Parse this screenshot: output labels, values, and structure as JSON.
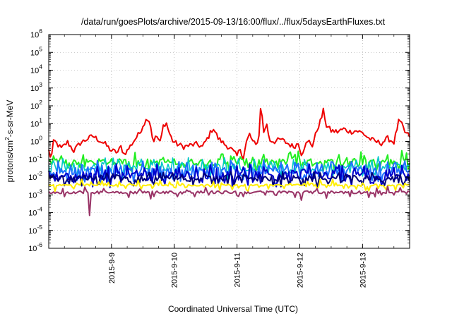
{
  "chart_data": {
    "type": "line",
    "title": "/data/run/goesPlots/archive/2015-09-13/16:00/flux/../flux/5daysEarthFluxes.txt",
    "xlabel": "Coordinated Universal Time (UTC)",
    "ylabel_parts": {
      "a": "protons/cm",
      "sup": "2",
      "b": "-s-sr-MeV"
    },
    "yscale": "log",
    "ylim_exp": [
      -6,
      6
    ],
    "ytick_exps": [
      -6,
      -5,
      -4,
      -3,
      -2,
      -1,
      0,
      1,
      2,
      3,
      4,
      5,
      6
    ],
    "ytick_base": "10",
    "xlim_days": [
      0,
      5.75
    ],
    "x_ticks": [
      {
        "label": "2015-9-9",
        "day": 1
      },
      {
        "label": "2015-9-10",
        "day": 2
      },
      {
        "label": "2015-9-11",
        "day": 3
      },
      {
        "label": "2015-9-12",
        "day": 4
      },
      {
        "label": "2015-9-13",
        "day": 5
      }
    ],
    "grid": true,
    "legend": "none",
    "series": [
      {
        "color": "#ee0000",
        "width": 2.0,
        "base": 0.5,
        "noise": 0.15,
        "spikes": 0.0,
        "anchors": [
          [
            0.0,
            0.3
          ],
          [
            0.04,
            0.1
          ],
          [
            0.08,
            1.2
          ],
          [
            0.12,
            0.8
          ],
          [
            0.2,
            0.4
          ],
          [
            0.3,
            0.9
          ],
          [
            0.4,
            0.3
          ],
          [
            0.5,
            0.8
          ],
          [
            0.6,
            1.3
          ],
          [
            0.7,
            2.0
          ],
          [
            0.8,
            1.2
          ],
          [
            0.9,
            0.7
          ],
          [
            1.0,
            0.3
          ],
          [
            1.1,
            0.25
          ],
          [
            1.15,
            0.5
          ],
          [
            1.2,
            0.2
          ],
          [
            1.25,
            0.3
          ],
          [
            1.35,
            1.0
          ],
          [
            1.45,
            3.0
          ],
          [
            1.5,
            8.0
          ],
          [
            1.58,
            22
          ],
          [
            1.62,
            10
          ],
          [
            1.66,
            1.0
          ],
          [
            1.72,
            2.0
          ],
          [
            1.78,
            0.8
          ],
          [
            1.82,
            7.0
          ],
          [
            1.87,
            12
          ],
          [
            1.92,
            3.0
          ],
          [
            1.98,
            1.0
          ],
          [
            2.05,
            0.7
          ],
          [
            2.15,
            0.5
          ],
          [
            2.25,
            0.6
          ],
          [
            2.35,
            0.7
          ],
          [
            2.45,
            0.5
          ],
          [
            2.55,
            2.0
          ],
          [
            2.62,
            6.0
          ],
          [
            2.7,
            1.5
          ],
          [
            2.8,
            0.7
          ],
          [
            2.9,
            0.4
          ],
          [
            3.0,
            0.15
          ],
          [
            3.05,
            0.4
          ],
          [
            3.1,
            0.12
          ],
          [
            3.15,
            0.9
          ],
          [
            3.2,
            2.5
          ],
          [
            3.25,
            1.0
          ],
          [
            3.3,
            0.6
          ],
          [
            3.35,
            2.0
          ],
          [
            3.38,
            180
          ],
          [
            3.42,
            3.0
          ],
          [
            3.47,
            10
          ],
          [
            3.52,
            1.2
          ],
          [
            3.6,
            1.0
          ],
          [
            3.7,
            1.3
          ],
          [
            3.8,
            0.8
          ],
          [
            3.9,
            0.5
          ],
          [
            3.98,
            0.8
          ],
          [
            4.03,
            0.18
          ],
          [
            4.08,
            0.6
          ],
          [
            4.15,
            1.0
          ],
          [
            4.2,
            0.6
          ],
          [
            4.28,
            5.0
          ],
          [
            4.34,
            18
          ],
          [
            4.38,
            60
          ],
          [
            4.42,
            8.0
          ],
          [
            4.5,
            4.0
          ],
          [
            4.6,
            3.5
          ],
          [
            4.7,
            5.0
          ],
          [
            4.8,
            3.5
          ],
          [
            4.9,
            4.0
          ],
          [
            5.0,
            3.0
          ],
          [
            5.1,
            1.5
          ],
          [
            5.2,
            1.0
          ],
          [
            5.3,
            0.8
          ],
          [
            5.4,
            1.5
          ],
          [
            5.5,
            0.9
          ],
          [
            5.58,
            15
          ],
          [
            5.63,
            8.0
          ],
          [
            5.68,
            3.0
          ],
          [
            5.75,
            2.0
          ]
        ]
      },
      {
        "color": "#22ee22",
        "width": 2.0,
        "base": 0.07,
        "noise": 0.18,
        "spikes": 0.35
      },
      {
        "color": "#00c8c8",
        "width": 1.6,
        "base": 0.035,
        "noise": 0.2,
        "spikes": 0.45
      },
      {
        "color": "#1e6fff",
        "width": 2.0,
        "base": 0.02,
        "noise": 0.22,
        "spikes": 0.55
      },
      {
        "color": "#0000cc",
        "width": 2.0,
        "base": 0.012,
        "noise": 0.22,
        "spikes": 0.55
      },
      {
        "color": "#00007a",
        "width": 2.0,
        "base": 0.008,
        "noise": 0.18,
        "spikes": 0.5
      },
      {
        "color": "#ffee00",
        "width": 2.0,
        "base": 0.0035,
        "noise": 0.05,
        "spikes": 0.3
      },
      {
        "color": "#993366",
        "width": 2.0,
        "base": 0.0014,
        "noise": 0.08,
        "spikes": 0.1,
        "dips": [
          [
            0.66,
            7e-05
          ],
          [
            1.62,
            0.0006
          ],
          [
            2.04,
            0.0008
          ],
          [
            4.02,
            0.0005
          ]
        ]
      }
    ]
  }
}
